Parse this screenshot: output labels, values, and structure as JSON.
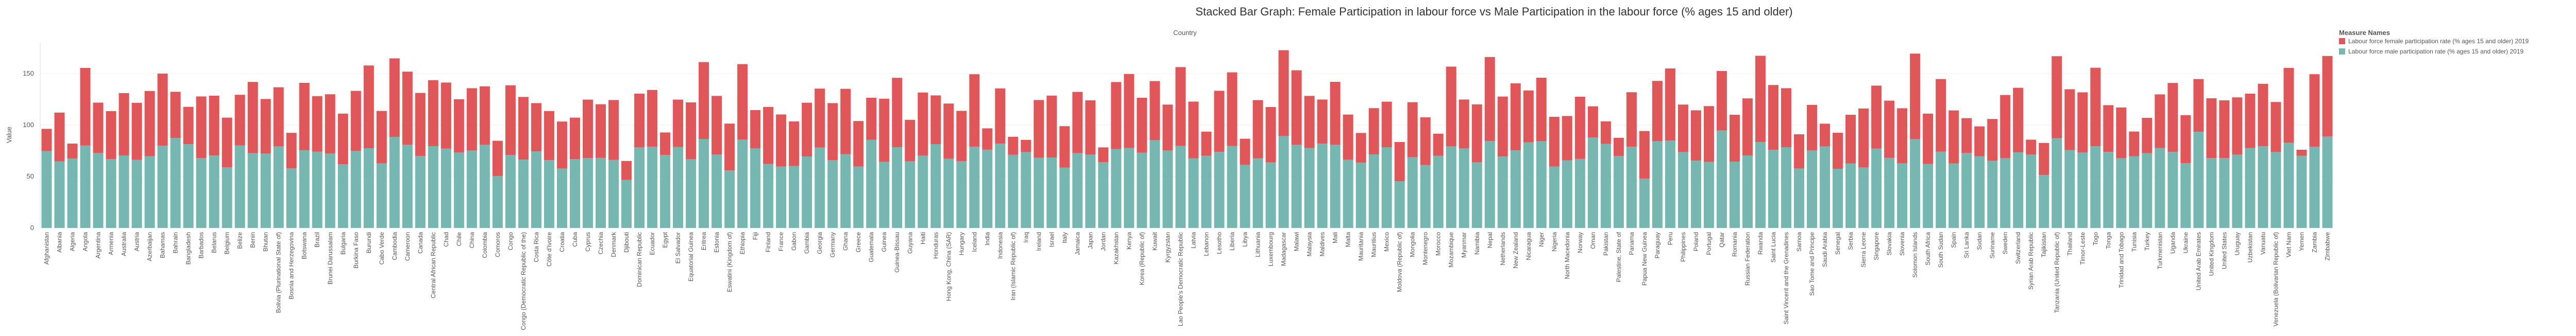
{
  "chart_data": {
    "type": "stacked_bar",
    "title": "Stacked Bar Graph: Female Participation in labour force vs Male Participation in the labour force (% ages 15 and older)",
    "column_header": "Country",
    "y_label": "Value",
    "legend_title": "Measure Names",
    "legend_position": "right",
    "grid": true,
    "ylim": [
      0,
      180
    ],
    "yticks": [
      0,
      50,
      100,
      150
    ],
    "categories": [
      "Afghanistan",
      "Albania",
      "Algeria",
      "Angola",
      "Argentina",
      "Armenia",
      "Australia",
      "Austria",
      "Azerbaijan",
      "Bahamas",
      "Bahrain",
      "Bangladesh",
      "Barbados",
      "Belarus",
      "Belgium",
      "Belize",
      "Benin",
      "Bhutan",
      "Bolivia (Plurinational State of)",
      "Bosnia and Herzegovina",
      "Botswana",
      "Brazil",
      "Brunei Darussalam",
      "Bulgaria",
      "Burkina Faso",
      "Burundi",
      "Cabo Verde",
      "Cambodia",
      "Cameroon",
      "Canada",
      "Central African Republic",
      "Chad",
      "Chile",
      "China",
      "Colombia",
      "Comoros",
      "Congo",
      "Congo (Democratic Republic of the)",
      "Costa Rica",
      "Côte d'Ivoire",
      "Croatia",
      "Cuba",
      "Cyprus",
      "Czechia",
      "Denmark",
      "Djibouti",
      "Dominican Republic",
      "Ecuador",
      "Egypt",
      "El Salvador",
      "Equatorial Guinea",
      "Eritrea",
      "Estonia",
      "Eswatini (Kingdom of)",
      "Ethiopia",
      "Fiji",
      "Finland",
      "France",
      "Gabon",
      "Gambia",
      "Georgia",
      "Germany",
      "Ghana",
      "Greece",
      "Guatemala",
      "Guinea",
      "Guinea-Bissau",
      "Guyana",
      "Haiti",
      "Honduras",
      "Hong Kong, China (SAR)",
      "Hungary",
      "Iceland",
      "India",
      "Indonesia",
      "Iran (Islamic Republic of)",
      "Iraq",
      "Ireland",
      "Israel",
      "Italy",
      "Jamaica",
      "Japan",
      "Jordan",
      "Kazakhstan",
      "Kenya",
      "Korea (Republic of)",
      "Kuwait",
      "Kyrgyzstan",
      "Lao People's Democratic Republic",
      "Latvia",
      "Lebanon",
      "Lesotho",
      "Liberia",
      "Libya",
      "Lithuania",
      "Luxembourg",
      "Madagascar",
      "Malawi",
      "Malaysia",
      "Maldives",
      "Mali",
      "Malta",
      "Mauritania",
      "Mauritius",
      "Mexico",
      "Moldova (Republic of)",
      "Mongolia",
      "Montenegro",
      "Morocco",
      "Mozambique",
      "Myanmar",
      "Namibia",
      "Nepal",
      "Netherlands",
      "New Zealand",
      "Nicaragua",
      "Niger",
      "Nigeria",
      "North Macedonia",
      "Norway",
      "Oman",
      "Pakistan",
      "Palestine, State of",
      "Panama",
      "Papua New Guinea",
      "Paraguay",
      "Peru",
      "Philippines",
      "Poland",
      "Portugal",
      "Qatar",
      "Romania",
      "Russian Federation",
      "Rwanda",
      "Saint Lucia",
      "Saint Vincent and the Grenadines",
      "Samoa",
      "Sao Tome and Principe",
      "Saudi Arabia",
      "Senegal",
      "Serbia",
      "Sierra Leone",
      "Singapore",
      "Slovakia",
      "Slovenia",
      "Solomon Islands",
      "South Africa",
      "South Sudan",
      "Spain",
      "Sri Lanka",
      "Sudan",
      "Suriname",
      "Sweden",
      "Switzerland",
      "Syrian Arab Republic",
      "Tajikistan",
      "Tanzania (United Republic of)",
      "Thailand",
      "Timor-Leste",
      "Togo",
      "Tonga",
      "Trinidad and Tobago",
      "Tunisia",
      "Turkey",
      "Turkmenistan",
      "Uganda",
      "Ukraine",
      "United Arab Emirates",
      "United Kingdom",
      "United States",
      "Uruguay",
      "Uzbekistan",
      "Vanuatu",
      "Venezuela (Bolivarian Republic of)",
      "Viet Nam",
      "Yemen",
      "Zambia",
      "Zimbabwe"
    ],
    "series": [
      {
        "name": "Labour force female participation rate (% ages 15 and older) 2019",
        "color": "#e15759",
        "values": [
          21.6,
          47.5,
          14.6,
          75.4,
          49.0,
          46.6,
          60.5,
          55.4,
          63.4,
          70.1,
          44.9,
          36.3,
          59.9,
          58.1,
          48.3,
          49.2,
          69.2,
          53.0,
          57.4,
          34.5,
          65.5,
          54.0,
          57.6,
          49.1,
          58.4,
          80.4,
          50.9,
          76.3,
          71.1,
          61.3,
          64.1,
          64.2,
          51.8,
          60.5,
          56.8,
          34.3,
          67.6,
          60.9,
          46.9,
          47.7,
          45.6,
          40.2,
          56.8,
          52.1,
          58.2,
          18.4,
          52.2,
          55.2,
          21.9,
          46.1,
          55.2,
          74.7,
          57.0,
          45.5,
          73.2,
          37.2,
          55.4,
          50.6,
          43.3,
          52.2,
          57.2,
          55.3,
          63.6,
          44.2,
          40.9,
          61.3,
          67.4,
          40.3,
          61.3,
          47.3,
          53.6,
          48.8,
          70.5,
          20.7,
          53.7,
          17.5,
          11.8,
          56.1,
          60.1,
          40.3,
          59.5,
          52.7,
          14.4,
          65.2,
          72.0,
          53.4,
          57.4,
          44.6,
          76.6,
          55.2,
          23.4,
          59.4,
          71.6,
          25.4,
          56.5,
          53.8,
          83.4,
          72.4,
          50.7,
          42.9,
          61.2,
          43.9,
          28.9,
          44.9,
          44.2,
          38.0,
          53.4,
          46.4,
          21.5,
          77.5,
          47.5,
          56.3,
          81.7,
          58.3,
          65.1,
          50.4,
          61.7,
          48.4,
          43.1,
          60.4,
          30.2,
          21.9,
          17.7,
          53.0,
          46.3,
          58.6,
          70.1,
          46.1,
          48.9,
          54.2,
          57.8,
          45.5,
          55.4,
          83.9,
          63.0,
          57.3,
          33.2,
          44.3,
          22.1,
          35.0,
          47.4,
          57.3,
          61.2,
          55.6,
          53.5,
          83.1,
          48.9,
          70.6,
          51.6,
          33.7,
          29.1,
          40.6,
          61.4,
          62.7,
          14.5,
          31.2,
          79.7,
          59.2,
          58.5,
          76.3,
          45.4,
          49.3,
          24.1,
          34.4,
          52.2,
          67.0,
          46.7,
          51.3,
          58.1,
          56.1,
          55.6,
          52.9,
          60.7,
          48.6,
          72.7,
          5.8,
          70.4,
          78.1
        ]
      },
      {
        "name": "Labour force male participation rate (% ages 15 and older) 2019",
        "color": "#76b7b2",
        "values": [
          74.7,
          64.6,
          67.4,
          80.1,
          72.8,
          66.9,
          70.5,
          66.2,
          69.7,
          79.9,
          87.4,
          81.4,
          67.9,
          70.4,
          58.9,
          80.2,
          72.7,
          72.3,
          79.3,
          57.9,
          75.5,
          74.1,
          72.3,
          62.0,
          74.8,
          77.5,
          62.8,
          88.5,
          80.8,
          69.9,
          79.5,
          77.1,
          73.3,
          75.3,
          80.8,
          50.4,
          71.0,
          66.4,
          74.4,
          65.9,
          57.8,
          67.0,
          67.9,
          68.1,
          66.1,
          46.7,
          78.3,
          78.9,
          70.9,
          78.6,
          66.8,
          86.5,
          71.3,
          55.9,
          86.0,
          77.3,
          62.2,
          59.7,
          60.2,
          69.5,
          78.2,
          66.0,
          71.6,
          59.7,
          85.6,
          64.3,
          78.5,
          64.8,
          70.3,
          81.5,
          67.3,
          65.0,
          78.9,
          76.1,
          81.9,
          71.1,
          73.8,
          68.2,
          68.5,
          58.6,
          72.7,
          71.3,
          63.9,
          76.6,
          77.6,
          73.1,
          85.3,
          75.3,
          79.7,
          67.6,
          70.2,
          73.9,
          79.6,
          61.3,
          67.7,
          63.7,
          89.3,
          80.8,
          77.6,
          81.9,
          80.8,
          66.3,
          63.4,
          71.5,
          78.5,
          45.5,
          68.8,
          61.1,
          70.1,
          79.3,
          77.3,
          63.8,
          84.4,
          69.4,
          75.4,
          83.2,
          84.3,
          59.6,
          65.7,
          67.1,
          88.0,
          81.7,
          69.9,
          78.9,
          47.9,
          84.3,
          84.9,
          73.8,
          65.4,
          64.2,
          94.7,
          64.5,
          70.5,
          83.4,
          75.9,
          78.5,
          57.8,
          75.3,
          79.2,
          57.5,
          62.6,
          58.8,
          77.1,
          68.1,
          62.8,
          86.3,
          62.2,
          74.1,
          62.6,
          73.0,
          69.6,
          65.3,
          67.8,
          73.5,
          71.3,
          51.4,
          87.2,
          75.6,
          73.3,
          79.4,
          73.9,
          67.8,
          69.6,
          72.6,
          77.6,
          73.9,
          62.9,
          93.4,
          67.9,
          67.9,
          71.3,
          77.6,
          79.4,
          73.8,
          82.8,
          70.2,
          79.0,
          89.0
        ]
      }
    ]
  }
}
